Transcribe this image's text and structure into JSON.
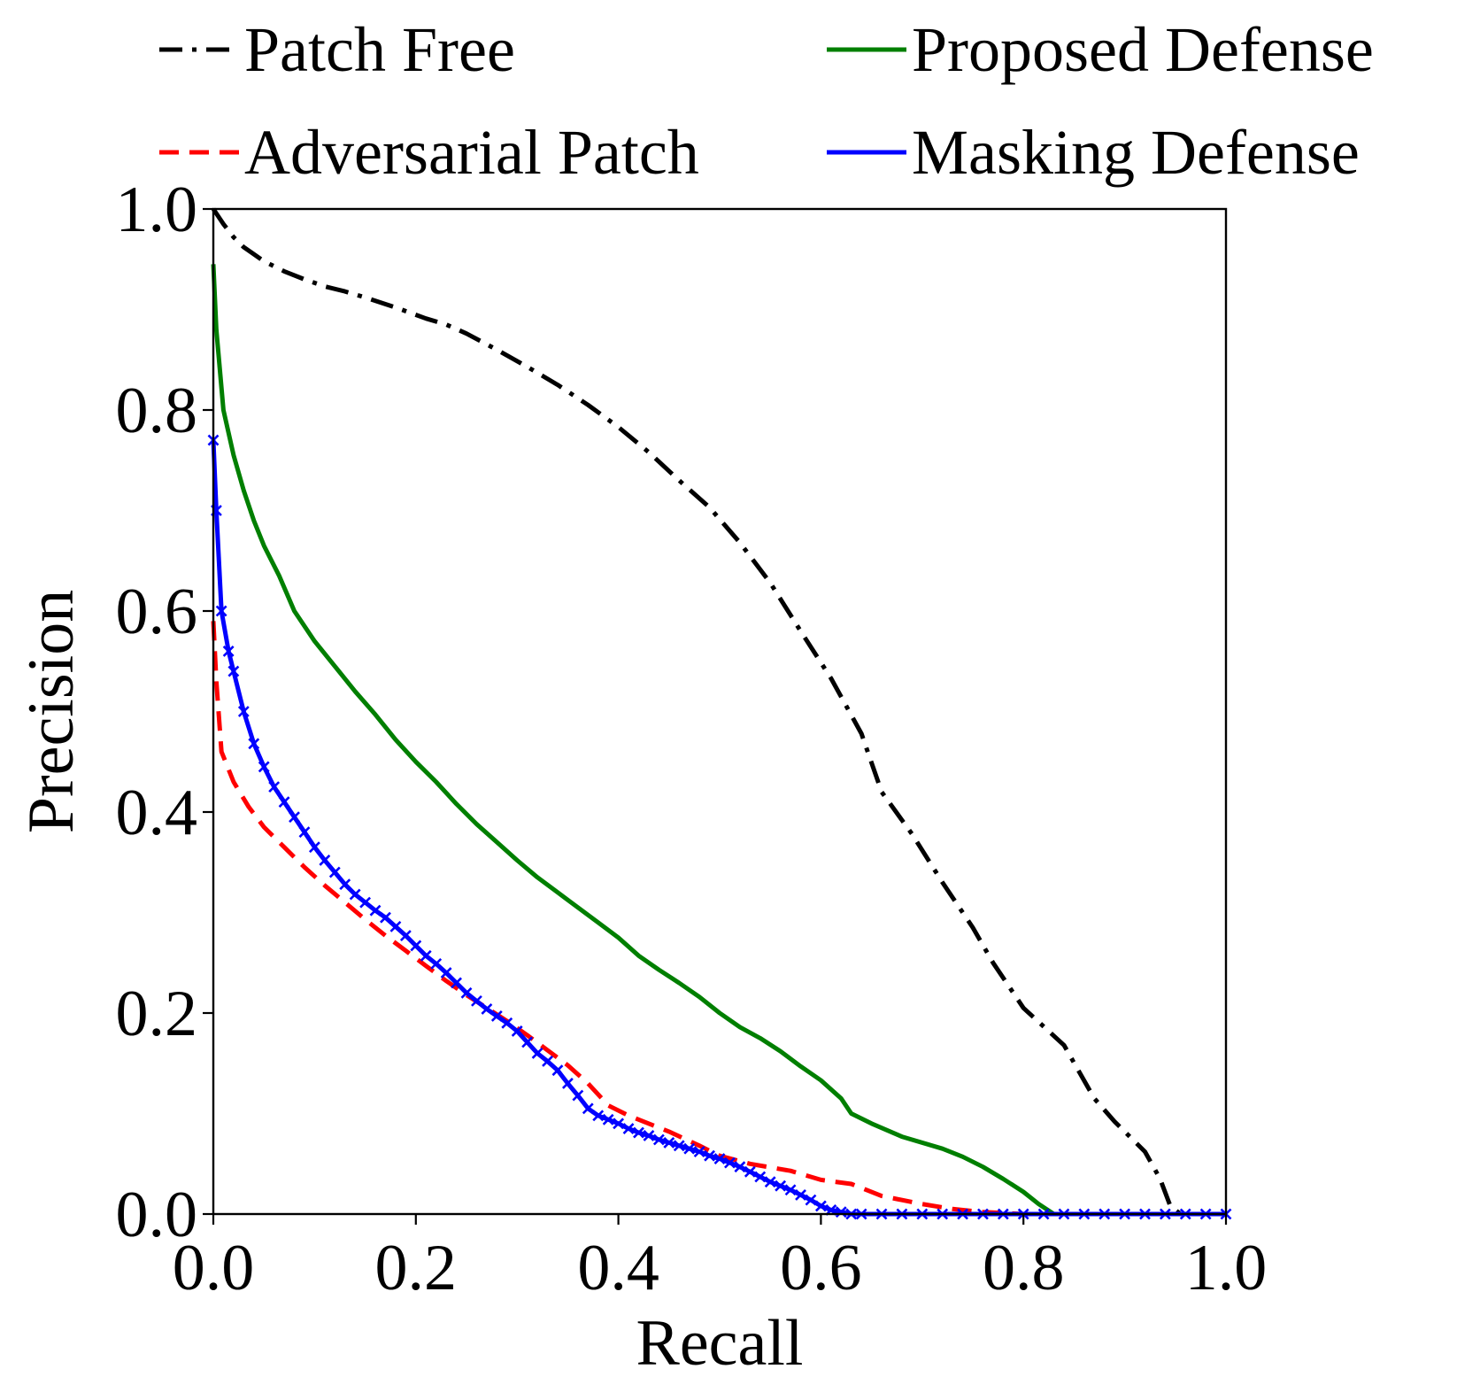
{
  "chart_data": {
    "type": "line",
    "title": "",
    "xlabel": "Recall",
    "ylabel": "Precision",
    "xlim": [
      0.0,
      1.0
    ],
    "ylim": [
      0.0,
      1.0
    ],
    "xticks": [
      "0.0",
      "0.2",
      "0.4",
      "0.6",
      "0.8",
      "1.0"
    ],
    "yticks": [
      "0.0",
      "0.2",
      "0.4",
      "0.6",
      "0.8",
      "1.0"
    ],
    "grid": false,
    "legend_position": "top",
    "series": [
      {
        "name": "Patch Free",
        "color": "#000000",
        "style": "dashdot",
        "points": [
          [
            0.0,
            1.0
          ],
          [
            0.01,
            0.985
          ],
          [
            0.02,
            0.972
          ],
          [
            0.03,
            0.962
          ],
          [
            0.04,
            0.955
          ],
          [
            0.05,
            0.948
          ],
          [
            0.07,
            0.938
          ],
          [
            0.09,
            0.93
          ],
          [
            0.11,
            0.923
          ],
          [
            0.13,
            0.918
          ],
          [
            0.15,
            0.912
          ],
          [
            0.18,
            0.902
          ],
          [
            0.21,
            0.891
          ],
          [
            0.23,
            0.885
          ],
          [
            0.25,
            0.876
          ],
          [
            0.28,
            0.86
          ],
          [
            0.31,
            0.843
          ],
          [
            0.34,
            0.825
          ],
          [
            0.37,
            0.805
          ],
          [
            0.4,
            0.783
          ],
          [
            0.43,
            0.758
          ],
          [
            0.46,
            0.73
          ],
          [
            0.49,
            0.703
          ],
          [
            0.52,
            0.668
          ],
          [
            0.55,
            0.628
          ],
          [
            0.58,
            0.58
          ],
          [
            0.61,
            0.533
          ],
          [
            0.64,
            0.478
          ],
          [
            0.66,
            0.42
          ],
          [
            0.69,
            0.378
          ],
          [
            0.72,
            0.33
          ],
          [
            0.75,
            0.285
          ],
          [
            0.77,
            0.25
          ],
          [
            0.8,
            0.205
          ],
          [
            0.84,
            0.168
          ],
          [
            0.87,
            0.115
          ],
          [
            0.89,
            0.092
          ],
          [
            0.92,
            0.062
          ],
          [
            0.935,
            0.035
          ],
          [
            0.945,
            0.008
          ],
          [
            0.955,
            0.0
          ],
          [
            0.97,
            0.0
          ],
          [
            1.0,
            0.0
          ]
        ]
      },
      {
        "name": "Proposed Defense",
        "color": "#007f00",
        "style": "solid",
        "points": [
          [
            0.0,
            0.945
          ],
          [
            0.003,
            0.88
          ],
          [
            0.01,
            0.8
          ],
          [
            0.02,
            0.755
          ],
          [
            0.03,
            0.72
          ],
          [
            0.04,
            0.69
          ],
          [
            0.05,
            0.665
          ],
          [
            0.065,
            0.635
          ],
          [
            0.08,
            0.6
          ],
          [
            0.1,
            0.57
          ],
          [
            0.12,
            0.545
          ],
          [
            0.14,
            0.52
          ],
          [
            0.16,
            0.497
          ],
          [
            0.18,
            0.472
          ],
          [
            0.2,
            0.45
          ],
          [
            0.22,
            0.43
          ],
          [
            0.24,
            0.408
          ],
          [
            0.26,
            0.388
          ],
          [
            0.28,
            0.37
          ],
          [
            0.3,
            0.352
          ],
          [
            0.32,
            0.335
          ],
          [
            0.34,
            0.32
          ],
          [
            0.36,
            0.305
          ],
          [
            0.38,
            0.29
          ],
          [
            0.4,
            0.275
          ],
          [
            0.42,
            0.257
          ],
          [
            0.44,
            0.243
          ],
          [
            0.46,
            0.23
          ],
          [
            0.48,
            0.216
          ],
          [
            0.5,
            0.2
          ],
          [
            0.52,
            0.186
          ],
          [
            0.54,
            0.175
          ],
          [
            0.56,
            0.162
          ],
          [
            0.58,
            0.147
          ],
          [
            0.6,
            0.133
          ],
          [
            0.62,
            0.115
          ],
          [
            0.63,
            0.1
          ],
          [
            0.65,
            0.09
          ],
          [
            0.68,
            0.077
          ],
          [
            0.72,
            0.065
          ],
          [
            0.74,
            0.057
          ],
          [
            0.76,
            0.047
          ],
          [
            0.78,
            0.035
          ],
          [
            0.8,
            0.022
          ],
          [
            0.815,
            0.01
          ],
          [
            0.83,
            0.0
          ],
          [
            1.0,
            0.0
          ]
        ]
      },
      {
        "name": "Adversarial Patch",
        "color": "#ff0000",
        "style": "dashed",
        "points": [
          [
            0.0,
            0.59
          ],
          [
            0.003,
            0.53
          ],
          [
            0.008,
            0.46
          ],
          [
            0.02,
            0.43
          ],
          [
            0.035,
            0.405
          ],
          [
            0.05,
            0.385
          ],
          [
            0.07,
            0.365
          ],
          [
            0.09,
            0.345
          ],
          [
            0.11,
            0.327
          ],
          [
            0.13,
            0.31
          ],
          [
            0.15,
            0.293
          ],
          [
            0.17,
            0.277
          ],
          [
            0.19,
            0.262
          ],
          [
            0.21,
            0.247
          ],
          [
            0.23,
            0.232
          ],
          [
            0.25,
            0.218
          ],
          [
            0.27,
            0.205
          ],
          [
            0.29,
            0.192
          ],
          [
            0.31,
            0.178
          ],
          [
            0.33,
            0.163
          ],
          [
            0.35,
            0.148
          ],
          [
            0.37,
            0.13
          ],
          [
            0.39,
            0.108
          ],
          [
            0.41,
            0.098
          ],
          [
            0.45,
            0.082
          ],
          [
            0.48,
            0.068
          ],
          [
            0.5,
            0.058
          ],
          [
            0.53,
            0.05
          ],
          [
            0.57,
            0.043
          ],
          [
            0.6,
            0.034
          ],
          [
            0.63,
            0.03
          ],
          [
            0.66,
            0.018
          ],
          [
            0.7,
            0.01
          ],
          [
            0.73,
            0.005
          ],
          [
            0.76,
            0.002
          ],
          [
            0.8,
            0.0
          ],
          [
            1.0,
            0.0
          ]
        ]
      },
      {
        "name": "Masking Defense",
        "color": "#0000ff",
        "style": "solid",
        "marker": "x",
        "points": [
          [
            0.0,
            0.77
          ],
          [
            0.003,
            0.7
          ],
          [
            0.008,
            0.6
          ],
          [
            0.015,
            0.56
          ],
          [
            0.02,
            0.54
          ],
          [
            0.03,
            0.5
          ],
          [
            0.04,
            0.468
          ],
          [
            0.05,
            0.445
          ],
          [
            0.06,
            0.425
          ],
          [
            0.07,
            0.41
          ],
          [
            0.08,
            0.395
          ],
          [
            0.09,
            0.38
          ],
          [
            0.1,
            0.365
          ],
          [
            0.11,
            0.352
          ],
          [
            0.12,
            0.34
          ],
          [
            0.13,
            0.328
          ],
          [
            0.14,
            0.318
          ],
          [
            0.15,
            0.31
          ],
          [
            0.16,
            0.302
          ],
          [
            0.17,
            0.295
          ],
          [
            0.18,
            0.286
          ],
          [
            0.19,
            0.277
          ],
          [
            0.2,
            0.267
          ],
          [
            0.21,
            0.257
          ],
          [
            0.22,
            0.249
          ],
          [
            0.23,
            0.24
          ],
          [
            0.24,
            0.23
          ],
          [
            0.25,
            0.22
          ],
          [
            0.26,
            0.212
          ],
          [
            0.27,
            0.204
          ],
          [
            0.28,
            0.197
          ],
          [
            0.29,
            0.19
          ],
          [
            0.3,
            0.182
          ],
          [
            0.31,
            0.171
          ],
          [
            0.32,
            0.16
          ],
          [
            0.33,
            0.152
          ],
          [
            0.34,
            0.143
          ],
          [
            0.35,
            0.13
          ],
          [
            0.36,
            0.118
          ],
          [
            0.37,
            0.105
          ],
          [
            0.38,
            0.098
          ],
          [
            0.39,
            0.094
          ],
          [
            0.4,
            0.09
          ],
          [
            0.41,
            0.085
          ],
          [
            0.42,
            0.081
          ],
          [
            0.43,
            0.078
          ],
          [
            0.44,
            0.074
          ],
          [
            0.45,
            0.071
          ],
          [
            0.46,
            0.068
          ],
          [
            0.47,
            0.065
          ],
          [
            0.48,
            0.062
          ],
          [
            0.49,
            0.058
          ],
          [
            0.5,
            0.055
          ],
          [
            0.51,
            0.051
          ],
          [
            0.52,
            0.047
          ],
          [
            0.53,
            0.042
          ],
          [
            0.54,
            0.037
          ],
          [
            0.55,
            0.032
          ],
          [
            0.56,
            0.028
          ],
          [
            0.57,
            0.024
          ],
          [
            0.58,
            0.019
          ],
          [
            0.59,
            0.014
          ],
          [
            0.6,
            0.008
          ],
          [
            0.61,
            0.004
          ],
          [
            0.62,
            0.002
          ],
          [
            0.63,
            0.0
          ],
          [
            0.64,
            0.0
          ],
          [
            0.66,
            0.0
          ],
          [
            0.68,
            0.0
          ],
          [
            0.7,
            0.0
          ],
          [
            0.72,
            0.0
          ],
          [
            0.74,
            0.0
          ],
          [
            0.76,
            0.0
          ],
          [
            0.78,
            0.0
          ],
          [
            0.8,
            0.0
          ],
          [
            0.82,
            0.0
          ],
          [
            0.84,
            0.0
          ],
          [
            0.86,
            0.0
          ],
          [
            0.88,
            0.0
          ],
          [
            0.9,
            0.0
          ],
          [
            0.92,
            0.0
          ],
          [
            0.94,
            0.0
          ],
          [
            0.96,
            0.0
          ],
          [
            0.98,
            0.0
          ],
          [
            1.0,
            0.0
          ]
        ]
      }
    ]
  }
}
